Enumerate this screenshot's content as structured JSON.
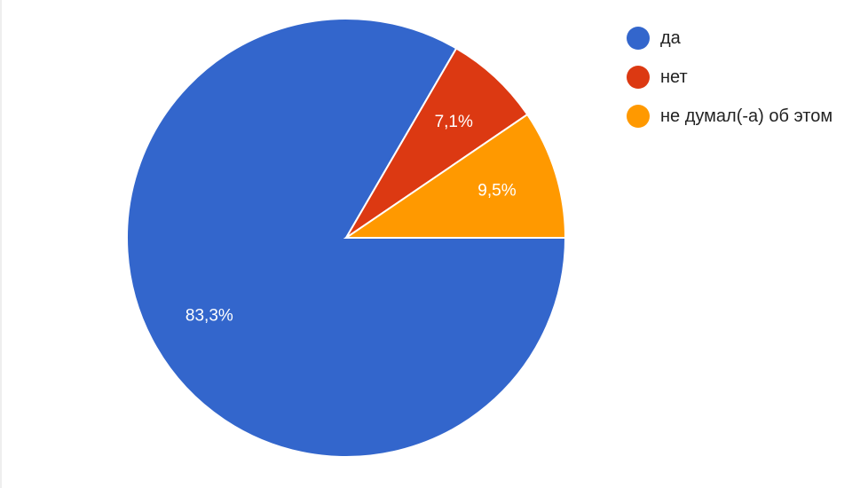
{
  "chart_data": {
    "type": "pie",
    "categories": [
      "да",
      "нет",
      "не думал(-а) об этом"
    ],
    "values": [
      83.3,
      7.1,
      9.5
    ],
    "value_labels": [
      "83,3%",
      "7,1%",
      "9,5%"
    ],
    "colors": [
      "#3366cc",
      "#dc3912",
      "#ff9900"
    ]
  }
}
